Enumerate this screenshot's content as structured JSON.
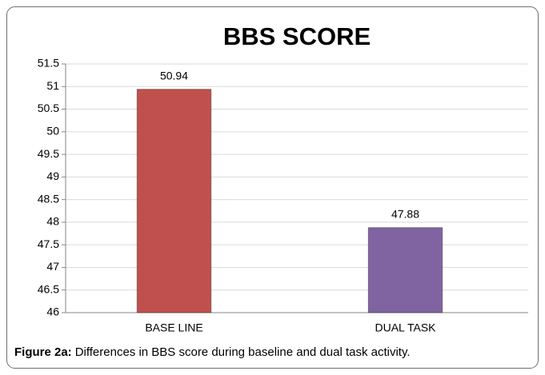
{
  "chart_data": {
    "type": "bar",
    "title": "BBS SCORE",
    "categories": [
      "BASE LINE",
      "DUAL TASK"
    ],
    "values": [
      50.94,
      47.88
    ],
    "colors": [
      "#c0504d",
      "#8064a2"
    ],
    "ylim": [
      46,
      51.5
    ],
    "yticks": [
      46,
      46.5,
      47,
      47.5,
      48,
      48.5,
      49,
      49.5,
      50,
      50.5,
      51,
      51.5
    ],
    "grid": true
  },
  "figure": {
    "label": "Figure 2a:",
    "text": "Differences in BBS score during baseline and dual task activity."
  }
}
